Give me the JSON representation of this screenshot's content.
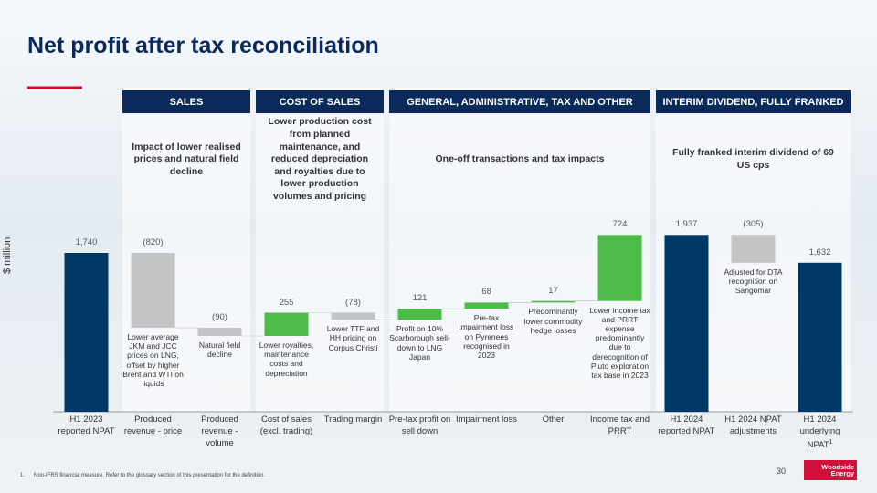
{
  "title": "Net profit after tax reconciliation",
  "chart_data": {
    "type": "waterfall",
    "y_label": "$ million",
    "categories": [
      "H1 2023 reported NPAT",
      "Produced revenue - price",
      "Produced revenue - volume",
      "Cost of sales (excl. trading)",
      "Trading margin",
      "Pre-tax profit on sell down",
      "Impairment loss",
      "Other",
      "Income tax and PRRT",
      "H1 2024 reported NPAT",
      "H1 2024 NPAT adjustments",
      "H1 2024 underlying NPAT"
    ],
    "category_footnote": {
      "index": 11,
      "marker": "1"
    },
    "measure": [
      "total",
      "relative",
      "relative",
      "relative",
      "relative",
      "relative",
      "relative",
      "relative",
      "relative",
      "total",
      "relative",
      "total"
    ],
    "values": [
      1740,
      -820,
      -90,
      255,
      -78,
      121,
      68,
      17,
      724,
      1937,
      -305,
      1632
    ],
    "value_labels": [
      "1,740",
      "(820)",
      "(90)",
      "255",
      "(78)",
      "121",
      "68",
      "17",
      "724",
      "1,937",
      "(305)",
      "1,632"
    ],
    "colors": {
      "total": "#003865",
      "increase": "#4cbb47",
      "decrease": "#c4c4c4"
    },
    "notes": [
      null,
      "Lower average JKM and JCC prices on LNG, offset by higher Brent and WTI on liquids",
      "Natural field decline",
      "Lower royalties, maintenance costs and depreciation",
      "Lower TTF and HH pricing on Corpus Christi",
      "Profit on 10% Scarborough sell-down to LNG Japan",
      "Pre-tax impairment loss on Pyrenees recognised in 2023",
      "Predominantly lower commodity hedge losses",
      "Lower income tax and PRRT expense predominantly due to derecognition of Pluto exploration tax base in 2023",
      null,
      "Adjusted for DTA recognition on Sangomar",
      null
    ],
    "ylim": [
      0,
      2000
    ],
    "sections": [
      {
        "title": "SALES",
        "description": "Impact of lower realised prices and natural field decline"
      },
      {
        "title": "COST OF SALES",
        "description": "Lower production cost from planned maintenance, and reduced depreciation and royalties due to lower production volumes and pricing"
      },
      {
        "title": "GENERAL, ADMINISTRATIVE, TAX AND OTHER",
        "description": "One-off transactions and tax impacts"
      },
      {
        "title": "INTERIM DIVIDEND, FULLY FRANKED",
        "description": "Fully franked interim dividend of 69 US cps"
      }
    ]
  },
  "footnote": "1.      Non-IFRS financial measure. Refer to the glossary section of this presentation for the definition.",
  "page_number": "30",
  "logo": "Woodside Energy"
}
